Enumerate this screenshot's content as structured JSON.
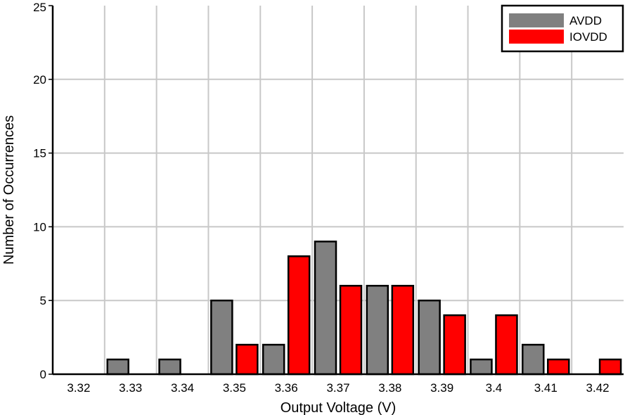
{
  "chart_data": {
    "type": "bar",
    "xlabel": "Output Voltage (V)",
    "ylabel": "Number of Occurrences",
    "categories": [
      "3.32",
      "3.33",
      "3.34",
      "3.35",
      "3.36",
      "3.37",
      "3.38",
      "3.39",
      "3.4",
      "3.41",
      "3.42"
    ],
    "ylim": [
      0,
      25
    ],
    "yticks": [
      0,
      5,
      10,
      15,
      20,
      25
    ],
    "grid": true,
    "legend_position": "top-right",
    "series": [
      {
        "name": "AVDD",
        "color": "#808080",
        "values": [
          0,
          1,
          1,
          5,
          2,
          9,
          6,
          5,
          1,
          2,
          0
        ]
      },
      {
        "name": "IOVDD",
        "color": "#ff0000",
        "values": [
          0,
          0,
          0,
          2,
          8,
          6,
          6,
          4,
          4,
          1,
          1
        ]
      }
    ]
  }
}
